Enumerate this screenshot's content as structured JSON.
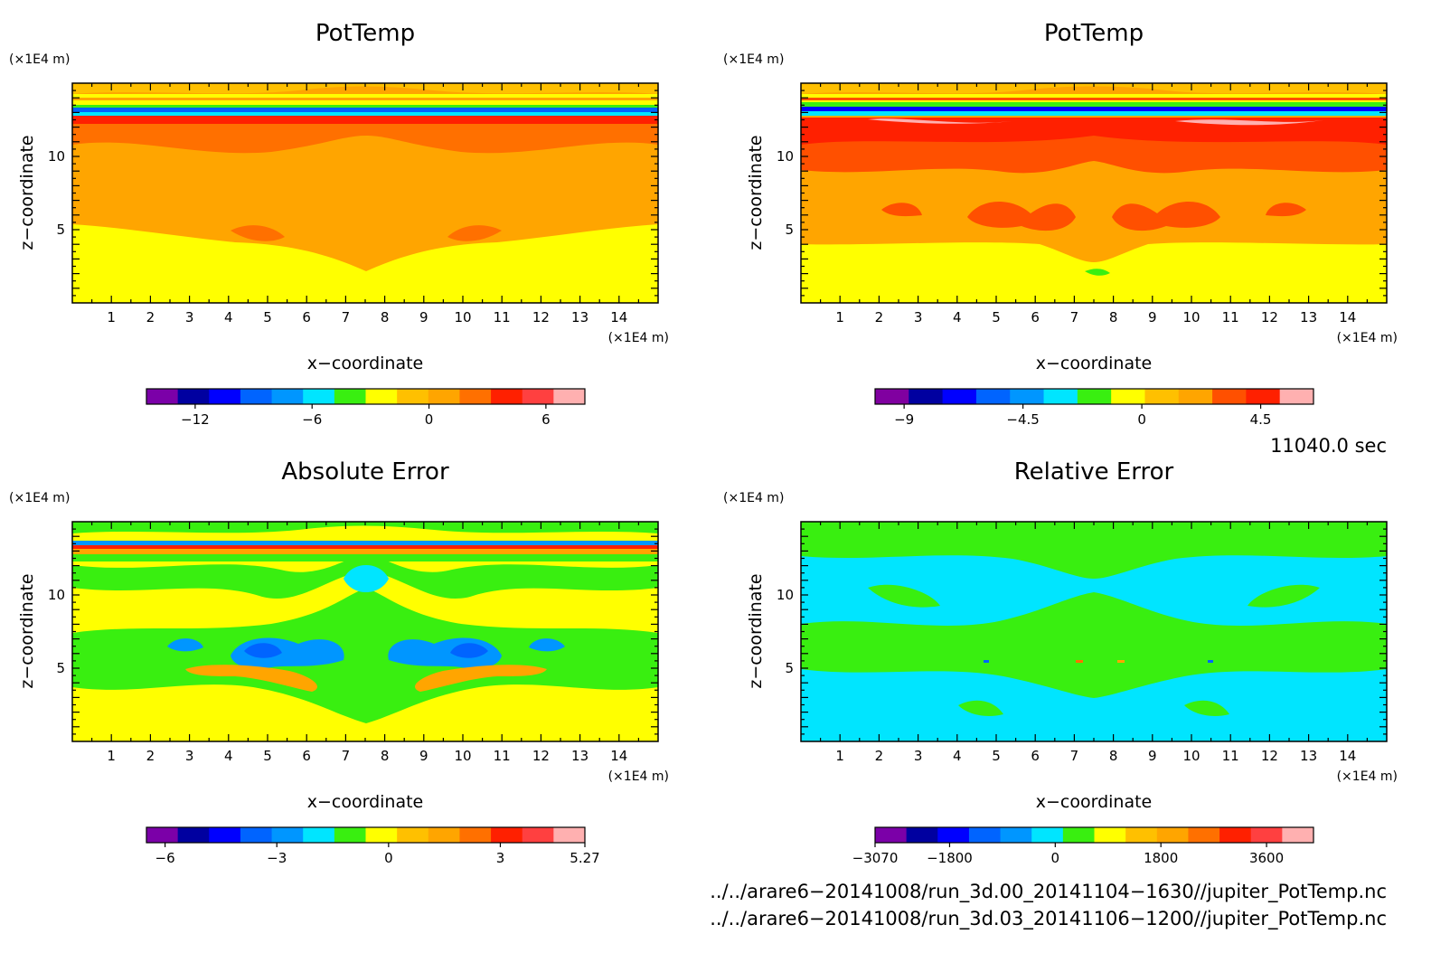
{
  "palette": {
    "potA": [
      "#7b00a8",
      "#0000a0",
      "#0000ff",
      "#0064ff",
      "#0096ff",
      "#00e5ff",
      "#39ef10",
      "#ffff00",
      "#ffc000",
      "#ffa500",
      "#ff7000",
      "#ff2000",
      "#ff4040",
      "#ffb0b0"
    ],
    "potB": [
      "#8000a0",
      "#0000a0",
      "#0000ff",
      "#0064ff",
      "#0096ff",
      "#00e5ff",
      "#39ef10",
      "#ffff00",
      "#ffc000",
      "#ffa500",
      "#ff5000",
      "#ff2000",
      "#ffb0b0"
    ],
    "absErr": [
      "#7b00a8",
      "#0000a0",
      "#0000ff",
      "#0064ff",
      "#0096ff",
      "#00e5ff",
      "#39ef10",
      "#ffff00",
      "#ffc000",
      "#ffa500",
      "#ff7000",
      "#ff2000",
      "#ff4040",
      "#ffb0b0"
    ],
    "relErr": [
      "#7b00a8",
      "#0000a0",
      "#0000ff",
      "#0064ff",
      "#0096ff",
      "#00e5ff",
      "#39ef10",
      "#ffff00",
      "#ffc000",
      "#ffa500",
      "#ff7000",
      "#ff2000",
      "#ff4040",
      "#ffb0b0"
    ]
  },
  "chart_data": [
    {
      "type": "heatmap",
      "title": "PotTemp",
      "xlabel": "x−coordinate",
      "ylabel": "z−coordinate",
      "x_unit": "(×1E4 m)",
      "y_unit": "(×1E4 m)",
      "xlim": [
        0,
        15
      ],
      "ylim": [
        0,
        15
      ],
      "x_ticks": [
        "1",
        "2",
        "3",
        "4",
        "5",
        "6",
        "7",
        "8",
        "9",
        "10",
        "11",
        "12",
        "13",
        "14"
      ],
      "y_ticks": [
        "5",
        "10"
      ],
      "colorbar_labels": [
        "−12",
        "−6",
        "0",
        "6"
      ],
      "colorbar_values": [
        -12,
        -6,
        0,
        6
      ],
      "colorbar_range": [
        -14.5,
        8.0
      ],
      "palette_key": "potA"
    },
    {
      "type": "heatmap",
      "title": "PotTemp",
      "xlabel": "x−coordinate",
      "ylabel": "z−coordinate",
      "x_unit": "(×1E4 m)",
      "y_unit": "(×1E4 m)",
      "xlim": [
        0,
        15
      ],
      "ylim": [
        0,
        15
      ],
      "x_ticks": [
        "1",
        "2",
        "3",
        "4",
        "5",
        "6",
        "7",
        "8",
        "9",
        "10",
        "11",
        "12",
        "13",
        "14"
      ],
      "y_ticks": [
        "5",
        "10"
      ],
      "colorbar_labels": [
        "−9",
        "−4.5",
        "0",
        "4.5"
      ],
      "colorbar_values": [
        -9,
        -4.5,
        0,
        4.5
      ],
      "colorbar_range": [
        -10.1,
        6.5
      ],
      "palette_key": "potB"
    },
    {
      "type": "heatmap",
      "title": "Absolute Error",
      "xlabel": "x−coordinate",
      "ylabel": "z−coordinate",
      "x_unit": "(×1E4 m)",
      "y_unit": "(×1E4 m)",
      "xlim": [
        0,
        15
      ],
      "ylim": [
        0,
        15
      ],
      "x_ticks": [
        "1",
        "2",
        "3",
        "4",
        "5",
        "6",
        "7",
        "8",
        "9",
        "10",
        "11",
        "12",
        "13",
        "14"
      ],
      "y_ticks": [
        "5",
        "10"
      ],
      "colorbar_labels": [
        "−6",
        "−3",
        "0",
        "3",
        "5.27"
      ],
      "colorbar_values": [
        -6,
        -3,
        0,
        3,
        5.27
      ],
      "colorbar_range": [
        -6.5,
        5.27
      ],
      "palette_key": "absErr"
    },
    {
      "type": "heatmap",
      "title": "Relative Error",
      "xlabel": "x−coordinate",
      "ylabel": "z−coordinate",
      "x_unit": "(×1E4 m)",
      "y_unit": "(×1E4 m)",
      "xlim": [
        0,
        15
      ],
      "ylim": [
        0,
        15
      ],
      "x_ticks": [
        "1",
        "2",
        "3",
        "4",
        "5",
        "6",
        "7",
        "8",
        "9",
        "10",
        "11",
        "12",
        "13",
        "14"
      ],
      "y_ticks": [
        "5",
        "10"
      ],
      "colorbar_labels": [
        "−3070",
        "−1800",
        "0",
        "1800",
        "3600"
      ],
      "colorbar_values": [
        -3070,
        -1800,
        0,
        1800,
        3600
      ],
      "colorbar_range": [
        -3070,
        4400
      ],
      "palette_key": "relErr"
    }
  ],
  "annotations": {
    "time": "11040.0 sec",
    "file1": "../../arare6−20141008/run_3d.00_20141104−1630//jupiter_PotTemp.nc",
    "file2": "../../arare6−20141008/run_3d.03_20141106−1200//jupiter_PotTemp.nc"
  }
}
